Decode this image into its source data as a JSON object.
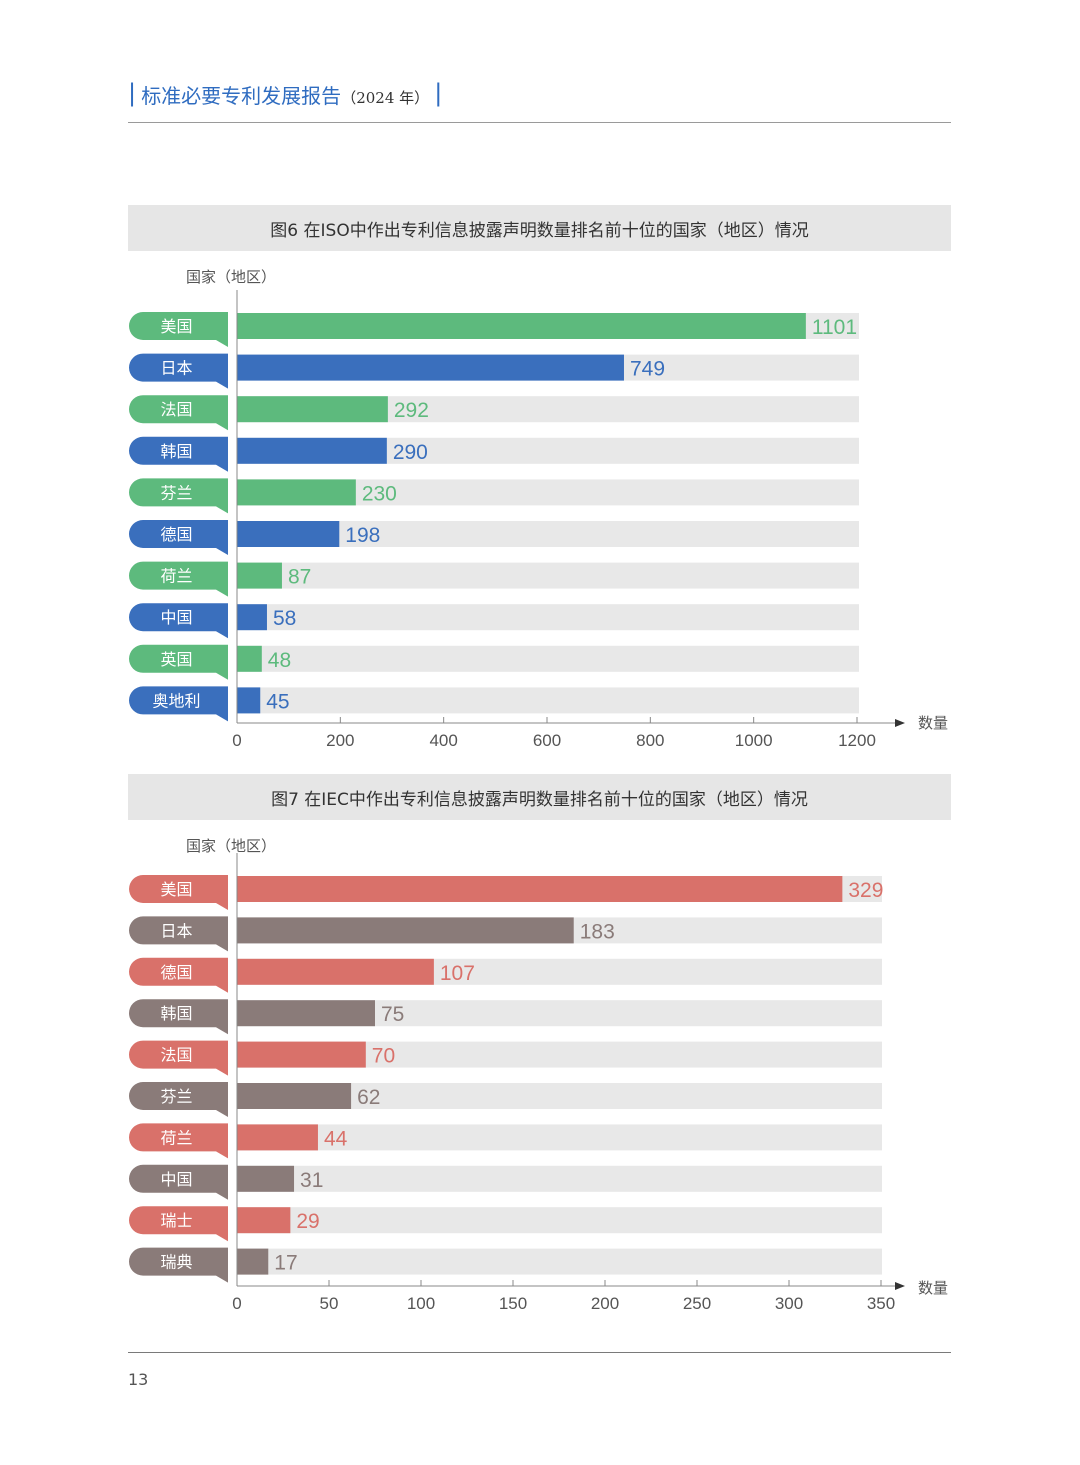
{
  "header": {
    "main": "标准必要专利发展报告",
    "year": "（2024 年）"
  },
  "charts": [
    {
      "title": "图6  在ISO中作出专利信息披露声明数量排名前十位的国家（地区）情况",
      "ylabel": "国家（地区）",
      "xlabel": "数量"
    },
    {
      "title": "图7  在IEC中作出专利信息披露声明数量排名前十位的国家（地区）情况",
      "ylabel": "国家（地区）",
      "xlabel": "数量"
    }
  ],
  "chart_data": [
    {
      "type": "bar",
      "orientation": "horizontal",
      "categories": [
        "美国",
        "日本",
        "法国",
        "韩国",
        "芬兰",
        "德国",
        "荷兰",
        "中国",
        "英国",
        "奥地利"
      ],
      "values": [
        1101,
        749,
        292,
        290,
        230,
        198,
        87,
        58,
        48,
        45
      ],
      "xlim": [
        0,
        1200
      ],
      "xticks": [
        0,
        200,
        400,
        600,
        800,
        1000,
        1200
      ],
      "colors": [
        "#5dba7d",
        "#3a6fbd"
      ]
    },
    {
      "type": "bar",
      "orientation": "horizontal",
      "categories": [
        "美国",
        "日本",
        "德国",
        "韩国",
        "法国",
        "芬兰",
        "荷兰",
        "中国",
        "瑞士",
        "瑞典"
      ],
      "values": [
        329,
        183,
        107,
        75,
        70,
        62,
        44,
        31,
        29,
        17
      ],
      "xlim": [
        0,
        350
      ],
      "xticks": [
        0,
        50,
        100,
        150,
        200,
        250,
        300,
        350
      ],
      "colors": [
        "#d9716a",
        "#8a7b79"
      ]
    }
  ],
  "page_number": "13"
}
